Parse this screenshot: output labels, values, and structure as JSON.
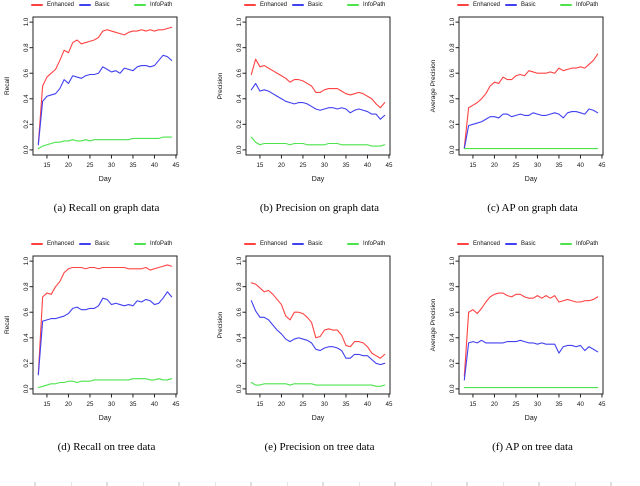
{
  "page": {
    "background": "#ffffff"
  },
  "legend": {
    "items": [
      {
        "label": "Enhanced",
        "color": "#ff4343"
      },
      {
        "label": "Basic",
        "color": "#4141f0"
      },
      {
        "label": "InfoPath",
        "color": "#4ce34c"
      }
    ]
  },
  "chart_data": [
    {
      "type": "line",
      "caption": "(a) Recall on graph data",
      "xlabel": "Day",
      "ylabel": "Recall",
      "x_start": 13,
      "xlim": [
        13,
        44
      ],
      "ylim": [
        0,
        1
      ],
      "xticks": [
        15,
        20,
        25,
        30,
        35,
        40,
        45
      ],
      "yticks": [
        0,
        0.2,
        0.4,
        0.6,
        0.8,
        1
      ],
      "grid": false,
      "legend_position": "top",
      "series": [
        {
          "name": "Enhanced",
          "color": "#ff4343",
          "values": [
            0.05,
            0.5,
            0.57,
            0.6,
            0.63,
            0.7,
            0.78,
            0.76,
            0.84,
            0.86,
            0.83,
            0.84,
            0.85,
            0.86,
            0.88,
            0.93,
            0.94,
            0.93,
            0.92,
            0.91,
            0.9,
            0.92,
            0.93,
            0.93,
            0.94,
            0.93,
            0.94,
            0.93,
            0.94,
            0.94,
            0.95,
            0.96
          ]
        },
        {
          "name": "Basic",
          "color": "#4141f0",
          "values": [
            0.04,
            0.38,
            0.42,
            0.43,
            0.44,
            0.48,
            0.55,
            0.52,
            0.58,
            0.57,
            0.56,
            0.58,
            0.59,
            0.59,
            0.6,
            0.65,
            0.63,
            0.61,
            0.62,
            0.6,
            0.64,
            0.63,
            0.62,
            0.65,
            0.66,
            0.66,
            0.65,
            0.66,
            0.7,
            0.74,
            0.73,
            0.7
          ]
        },
        {
          "name": "InfoPath",
          "color": "#4ce34c",
          "values": [
            0.01,
            0.03,
            0.04,
            0.05,
            0.06,
            0.06,
            0.07,
            0.07,
            0.08,
            0.07,
            0.07,
            0.08,
            0.07,
            0.08,
            0.08,
            0.08,
            0.08,
            0.08,
            0.08,
            0.08,
            0.08,
            0.08,
            0.09,
            0.09,
            0.09,
            0.09,
            0.09,
            0.09,
            0.09,
            0.1,
            0.1,
            0.1
          ]
        }
      ]
    },
    {
      "type": "line",
      "caption": "(b) Precision on graph data",
      "xlabel": "Day",
      "ylabel": "Precision",
      "x_start": 13,
      "xlim": [
        13,
        44
      ],
      "ylim": [
        0,
        1
      ],
      "xticks": [
        15,
        20,
        25,
        30,
        35,
        40,
        45
      ],
      "yticks": [
        0,
        0.2,
        0.4,
        0.6,
        0.8,
        1
      ],
      "grid": false,
      "legend_position": "top",
      "series": [
        {
          "name": "Enhanced",
          "color": "#ff4343",
          "values": [
            0.59,
            0.71,
            0.65,
            0.66,
            0.64,
            0.62,
            0.6,
            0.58,
            0.56,
            0.53,
            0.55,
            0.55,
            0.54,
            0.52,
            0.5,
            0.45,
            0.45,
            0.47,
            0.48,
            0.48,
            0.48,
            0.46,
            0.44,
            0.43,
            0.44,
            0.45,
            0.44,
            0.42,
            0.4,
            0.36,
            0.33,
            0.37
          ]
        },
        {
          "name": "Basic",
          "color": "#4141f0",
          "values": [
            0.47,
            0.52,
            0.46,
            0.47,
            0.46,
            0.44,
            0.42,
            0.4,
            0.38,
            0.37,
            0.36,
            0.37,
            0.37,
            0.36,
            0.34,
            0.32,
            0.31,
            0.32,
            0.33,
            0.33,
            0.32,
            0.33,
            0.32,
            0.29,
            0.31,
            0.32,
            0.31,
            0.3,
            0.28,
            0.28,
            0.24,
            0.27
          ]
        },
        {
          "name": "InfoPath",
          "color": "#4ce34c",
          "values": [
            0.1,
            0.06,
            0.04,
            0.05,
            0.05,
            0.05,
            0.05,
            0.05,
            0.05,
            0.04,
            0.05,
            0.05,
            0.05,
            0.04,
            0.04,
            0.04,
            0.04,
            0.04,
            0.05,
            0.05,
            0.05,
            0.04,
            0.04,
            0.04,
            0.04,
            0.04,
            0.04,
            0.04,
            0.03,
            0.03,
            0.03,
            0.04
          ]
        }
      ]
    },
    {
      "type": "line",
      "caption": "(c) AP on graph data",
      "xlabel": "Day",
      "ylabel": "Average Precision",
      "x_start": 13,
      "xlim": [
        13,
        44
      ],
      "ylim": [
        0,
        1
      ],
      "xticks": [
        15,
        20,
        25,
        30,
        35,
        40,
        45
      ],
      "yticks": [
        0,
        0.2,
        0.4,
        0.6,
        0.8,
        1
      ],
      "grid": false,
      "legend_position": "top",
      "series": [
        {
          "name": "Enhanced",
          "color": "#ff4343",
          "values": [
            0.02,
            0.33,
            0.35,
            0.37,
            0.4,
            0.44,
            0.5,
            0.53,
            0.52,
            0.57,
            0.55,
            0.55,
            0.58,
            0.59,
            0.58,
            0.62,
            0.61,
            0.6,
            0.6,
            0.6,
            0.61,
            0.6,
            0.64,
            0.62,
            0.63,
            0.64,
            0.64,
            0.65,
            0.64,
            0.67,
            0.7,
            0.75
          ]
        },
        {
          "name": "Basic",
          "color": "#4141f0",
          "values": [
            0.01,
            0.19,
            0.2,
            0.21,
            0.22,
            0.24,
            0.26,
            0.26,
            0.25,
            0.28,
            0.28,
            0.26,
            0.27,
            0.28,
            0.27,
            0.27,
            0.29,
            0.28,
            0.27,
            0.27,
            0.28,
            0.29,
            0.28,
            0.25,
            0.29,
            0.3,
            0.3,
            0.29,
            0.28,
            0.32,
            0.31,
            0.29
          ]
        },
        {
          "name": "InfoPath",
          "color": "#4ce34c",
          "values": [
            0.01,
            0.01,
            0.01,
            0.01,
            0.01,
            0.01,
            0.01,
            0.01,
            0.01,
            0.01,
            0.01,
            0.01,
            0.01,
            0.01,
            0.01,
            0.01,
            0.01,
            0.01,
            0.01,
            0.01,
            0.01,
            0.01,
            0.01,
            0.01,
            0.01,
            0.01,
            0.01,
            0.01,
            0.01,
            0.01,
            0.01,
            0.01
          ]
        }
      ]
    },
    {
      "type": "line",
      "caption": "(d) Recall on tree data",
      "xlabel": "Day",
      "ylabel": "Recall",
      "x_start": 13,
      "xlim": [
        13,
        44
      ],
      "ylim": [
        0,
        1
      ],
      "xticks": [
        15,
        20,
        25,
        30,
        35,
        40,
        45
      ],
      "yticks": [
        0,
        0.2,
        0.4,
        0.6,
        0.8,
        1
      ],
      "grid": false,
      "legend_position": "top",
      "series": [
        {
          "name": "Enhanced",
          "color": "#ff4343",
          "values": [
            0.12,
            0.72,
            0.75,
            0.74,
            0.8,
            0.84,
            0.91,
            0.94,
            0.95,
            0.95,
            0.95,
            0.94,
            0.95,
            0.95,
            0.94,
            0.95,
            0.95,
            0.95,
            0.95,
            0.95,
            0.95,
            0.94,
            0.94,
            0.94,
            0.94,
            0.95,
            0.93,
            0.94,
            0.95,
            0.96,
            0.97,
            0.96
          ]
        },
        {
          "name": "Basic",
          "color": "#4141f0",
          "values": [
            0.11,
            0.53,
            0.54,
            0.55,
            0.55,
            0.56,
            0.57,
            0.59,
            0.63,
            0.64,
            0.62,
            0.62,
            0.63,
            0.63,
            0.65,
            0.71,
            0.7,
            0.66,
            0.67,
            0.66,
            0.65,
            0.66,
            0.65,
            0.69,
            0.68,
            0.7,
            0.69,
            0.66,
            0.67,
            0.71,
            0.76,
            0.72
          ]
        },
        {
          "name": "InfoPath",
          "color": "#4ce34c",
          "values": [
            0.01,
            0.02,
            0.03,
            0.04,
            0.04,
            0.05,
            0.05,
            0.06,
            0.06,
            0.05,
            0.06,
            0.06,
            0.06,
            0.07,
            0.07,
            0.07,
            0.07,
            0.07,
            0.07,
            0.07,
            0.07,
            0.07,
            0.08,
            0.08,
            0.08,
            0.08,
            0.07,
            0.07,
            0.08,
            0.07,
            0.07,
            0.08
          ]
        }
      ]
    },
    {
      "type": "line",
      "caption": "(e) Precision on tree data",
      "xlabel": "Day",
      "ylabel": "Precision",
      "x_start": 13,
      "xlim": [
        13,
        44
      ],
      "ylim": [
        0,
        1
      ],
      "xticks": [
        15,
        20,
        25,
        30,
        35,
        40,
        45
      ],
      "yticks": [
        0,
        0.2,
        0.4,
        0.6,
        0.8,
        1
      ],
      "grid": false,
      "legend_position": "top",
      "series": [
        {
          "name": "Enhanced",
          "color": "#ff4343",
          "values": [
            0.83,
            0.82,
            0.79,
            0.76,
            0.77,
            0.74,
            0.7,
            0.66,
            0.57,
            0.54,
            0.6,
            0.6,
            0.59,
            0.56,
            0.52,
            0.4,
            0.41,
            0.46,
            0.47,
            0.46,
            0.46,
            0.42,
            0.34,
            0.33,
            0.37,
            0.37,
            0.36,
            0.33,
            0.28,
            0.26,
            0.24,
            0.27
          ]
        },
        {
          "name": "Basic",
          "color": "#4141f0",
          "values": [
            0.69,
            0.61,
            0.56,
            0.56,
            0.54,
            0.5,
            0.46,
            0.43,
            0.39,
            0.37,
            0.39,
            0.4,
            0.39,
            0.38,
            0.36,
            0.31,
            0.3,
            0.32,
            0.33,
            0.33,
            0.32,
            0.3,
            0.24,
            0.24,
            0.27,
            0.27,
            0.26,
            0.26,
            0.23,
            0.2,
            0.19,
            0.2
          ]
        },
        {
          "name": "InfoPath",
          "color": "#4ce34c",
          "values": [
            0.05,
            0.03,
            0.03,
            0.04,
            0.04,
            0.04,
            0.04,
            0.04,
            0.04,
            0.03,
            0.04,
            0.04,
            0.04,
            0.04,
            0.04,
            0.03,
            0.03,
            0.03,
            0.03,
            0.03,
            0.03,
            0.03,
            0.03,
            0.03,
            0.03,
            0.03,
            0.03,
            0.03,
            0.03,
            0.02,
            0.02,
            0.03
          ]
        }
      ]
    },
    {
      "type": "line",
      "caption": "(f) AP on tree data",
      "xlabel": "Day",
      "ylabel": "Average Precision",
      "x_start": 13,
      "xlim": [
        13,
        44
      ],
      "ylim": [
        0,
        1
      ],
      "xticks": [
        15,
        20,
        25,
        30,
        35,
        40,
        45
      ],
      "yticks": [
        0,
        0.2,
        0.4,
        0.6,
        0.8,
        1
      ],
      "grid": false,
      "legend_position": "top",
      "series": [
        {
          "name": "Enhanced",
          "color": "#ff4343",
          "values": [
            0.1,
            0.6,
            0.62,
            0.59,
            0.63,
            0.68,
            0.72,
            0.74,
            0.75,
            0.75,
            0.73,
            0.72,
            0.74,
            0.74,
            0.72,
            0.71,
            0.71,
            0.73,
            0.71,
            0.73,
            0.71,
            0.73,
            0.68,
            0.69,
            0.7,
            0.69,
            0.68,
            0.68,
            0.69,
            0.69,
            0.7,
            0.72
          ]
        },
        {
          "name": "Basic",
          "color": "#4141f0",
          "values": [
            0.07,
            0.36,
            0.37,
            0.36,
            0.38,
            0.36,
            0.36,
            0.36,
            0.36,
            0.36,
            0.37,
            0.37,
            0.37,
            0.38,
            0.37,
            0.36,
            0.36,
            0.35,
            0.36,
            0.35,
            0.35,
            0.35,
            0.28,
            0.33,
            0.34,
            0.34,
            0.33,
            0.34,
            0.3,
            0.33,
            0.31,
            0.29
          ]
        },
        {
          "name": "InfoPath",
          "color": "#4ce34c",
          "values": [
            0.01,
            0.01,
            0.01,
            0.01,
            0.01,
            0.01,
            0.01,
            0.01,
            0.01,
            0.01,
            0.01,
            0.01,
            0.01,
            0.01,
            0.01,
            0.01,
            0.01,
            0.01,
            0.01,
            0.01,
            0.01,
            0.01,
            0.01,
            0.01,
            0.01,
            0.01,
            0.01,
            0.01,
            0.01,
            0.01,
            0.01,
            0.01
          ]
        }
      ]
    }
  ]
}
